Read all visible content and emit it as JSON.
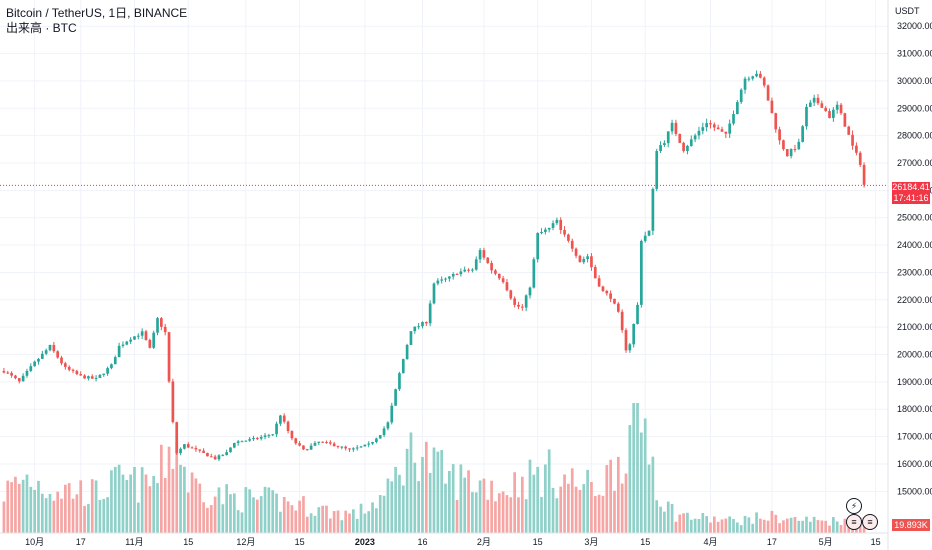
{
  "legend": {
    "symbol_line": "Bitcoin / TetherUS, 1日, BINANCE",
    "volume_line": "出来高 · BTC"
  },
  "price_axis": {
    "unit": "USDT",
    "ticks": [
      32000,
      31000,
      30000,
      29000,
      28000,
      27000,
      26000,
      25000,
      24000,
      23000,
      22000,
      21000,
      20000,
      19000,
      18000,
      17000,
      16000,
      15000
    ]
  },
  "last_price": {
    "value": "26184.41",
    "countdown": "17:41:16"
  },
  "last_volume": {
    "value": "19.893K"
  },
  "icons": {
    "alert": "lightning-icon",
    "flag1": "us-flag-icon",
    "flag2": "us-flag-icon"
  },
  "colors": {
    "up": "#26a69a",
    "down": "#ef5350",
    "up_volume": "#8fd0c8",
    "down_volume": "#f5a5a3",
    "last_price_line": "#f23645"
  },
  "time_axis": [
    {
      "label": "10月",
      "index": 8
    },
    {
      "label": "17",
      "index": 20
    },
    {
      "label": "11月",
      "index": 34
    },
    {
      "label": "15",
      "index": 48
    },
    {
      "label": "12月",
      "index": 63
    },
    {
      "label": "15",
      "index": 77
    },
    {
      "label": "2023",
      "index": 94
    },
    {
      "label": "16",
      "index": 109
    },
    {
      "label": "2月",
      "index": 125
    },
    {
      "label": "15",
      "index": 139
    },
    {
      "label": "3月",
      "index": 153
    },
    {
      "label": "15",
      "index": 167
    },
    {
      "label": "4月",
      "index": 184
    },
    {
      "label": "17",
      "index": 200
    },
    {
      "label": "5月",
      "index": 214
    },
    {
      "label": "15",
      "index": 227
    }
  ],
  "chart_data": {
    "type": "candlestick",
    "title": "Bitcoin / TetherUS, 1日, BINANCE",
    "y_unit": "USDT",
    "ylim": [
      14500,
      32300
    ],
    "last_price": 26184.41,
    "volume_unit": "BTC",
    "last_volume": "19.893K",
    "anchors": [
      [
        0,
        19400
      ],
      [
        4,
        19000
      ],
      [
        8,
        19700
      ],
      [
        12,
        20300
      ],
      [
        16,
        19500
      ],
      [
        20,
        19200
      ],
      [
        24,
        19100
      ],
      [
        28,
        19600
      ],
      [
        30,
        20300
      ],
      [
        33,
        20600
      ],
      [
        36,
        20800
      ],
      [
        38,
        20200
      ],
      [
        40,
        21300
      ],
      [
        42,
        20800
      ],
      [
        43,
        19000
      ],
      [
        44,
        17500
      ],
      [
        45,
        16400
      ],
      [
        47,
        16700
      ],
      [
        50,
        16500
      ],
      [
        55,
        16200
      ],
      [
        58,
        16400
      ],
      [
        60,
        16800
      ],
      [
        65,
        16900
      ],
      [
        70,
        17100
      ],
      [
        72,
        17800
      ],
      [
        75,
        16900
      ],
      [
        78,
        16500
      ],
      [
        82,
        16800
      ],
      [
        86,
        16700
      ],
      [
        90,
        16500
      ],
      [
        95,
        16700
      ],
      [
        98,
        17100
      ],
      [
        100,
        17500
      ],
      [
        103,
        19300
      ],
      [
        106,
        20900
      ],
      [
        110,
        21200
      ],
      [
        112,
        22600
      ],
      [
        116,
        22800
      ],
      [
        118,
        23000
      ],
      [
        122,
        23100
      ],
      [
        124,
        23800
      ],
      [
        127,
        23100
      ],
      [
        130,
        22700
      ],
      [
        133,
        21800
      ],
      [
        135,
        21700
      ],
      [
        137,
        22500
      ],
      [
        139,
        24400
      ],
      [
        142,
        24600
      ],
      [
        144,
        24900
      ],
      [
        145,
        24500
      ],
      [
        147,
        24200
      ],
      [
        150,
        23400
      ],
      [
        152,
        23600
      ],
      [
        154,
        22800
      ],
      [
        156,
        22300
      ],
      [
        158,
        22100
      ],
      [
        160,
        21500
      ],
      [
        162,
        20200
      ],
      [
        163,
        20400
      ],
      [
        165,
        21800
      ],
      [
        166,
        24200
      ],
      [
        168,
        24500
      ],
      [
        170,
        27500
      ],
      [
        172,
        27800
      ],
      [
        174,
        28400
      ],
      [
        177,
        27500
      ],
      [
        180,
        28000
      ],
      [
        183,
        28500
      ],
      [
        186,
        28200
      ],
      [
        188,
        28000
      ],
      [
        191,
        29300
      ],
      [
        193,
        30100
      ],
      [
        196,
        30300
      ],
      [
        198,
        29800
      ],
      [
        200,
        28800
      ],
      [
        202,
        27800
      ],
      [
        204,
        27300
      ],
      [
        207,
        27700
      ],
      [
        209,
        29000
      ],
      [
        211,
        29300
      ],
      [
        213,
        29100
      ],
      [
        215,
        28700
      ],
      [
        217,
        29100
      ],
      [
        219,
        28400
      ],
      [
        221,
        27600
      ],
      [
        223,
        27000
      ],
      [
        224,
        26200
      ]
    ],
    "volume_anchors": [
      [
        0,
        240
      ],
      [
        6,
        320
      ],
      [
        12,
        260
      ],
      [
        18,
        250
      ],
      [
        24,
        230
      ],
      [
        30,
        300
      ],
      [
        36,
        280
      ],
      [
        40,
        310
      ],
      [
        43,
        480
      ],
      [
        45,
        520
      ],
      [
        48,
        300
      ],
      [
        55,
        220
      ],
      [
        62,
        200
      ],
      [
        70,
        190
      ],
      [
        78,
        160
      ],
      [
        86,
        120
      ],
      [
        92,
        110
      ],
      [
        96,
        170
      ],
      [
        100,
        230
      ],
      [
        104,
        420
      ],
      [
        108,
        500
      ],
      [
        112,
        380
      ],
      [
        116,
        320
      ],
      [
        122,
        300
      ],
      [
        126,
        280
      ],
      [
        130,
        250
      ],
      [
        134,
        300
      ],
      [
        138,
        330
      ],
      [
        142,
        350
      ],
      [
        146,
        310
      ],
      [
        150,
        280
      ],
      [
        154,
        260
      ],
      [
        158,
        350
      ],
      [
        162,
        520
      ],
      [
        165,
        610
      ],
      [
        167,
        640
      ],
      [
        169,
        430
      ],
      [
        171,
        200
      ],
      [
        175,
        110
      ],
      [
        180,
        90
      ],
      [
        185,
        80
      ],
      [
        190,
        70
      ],
      [
        195,
        85
      ],
      [
        200,
        95
      ],
      [
        205,
        80
      ],
      [
        210,
        75
      ],
      [
        215,
        70
      ],
      [
        220,
        80
      ],
      [
        224,
        90
      ]
    ],
    "volume_ylim": [
      0,
      700
    ]
  }
}
